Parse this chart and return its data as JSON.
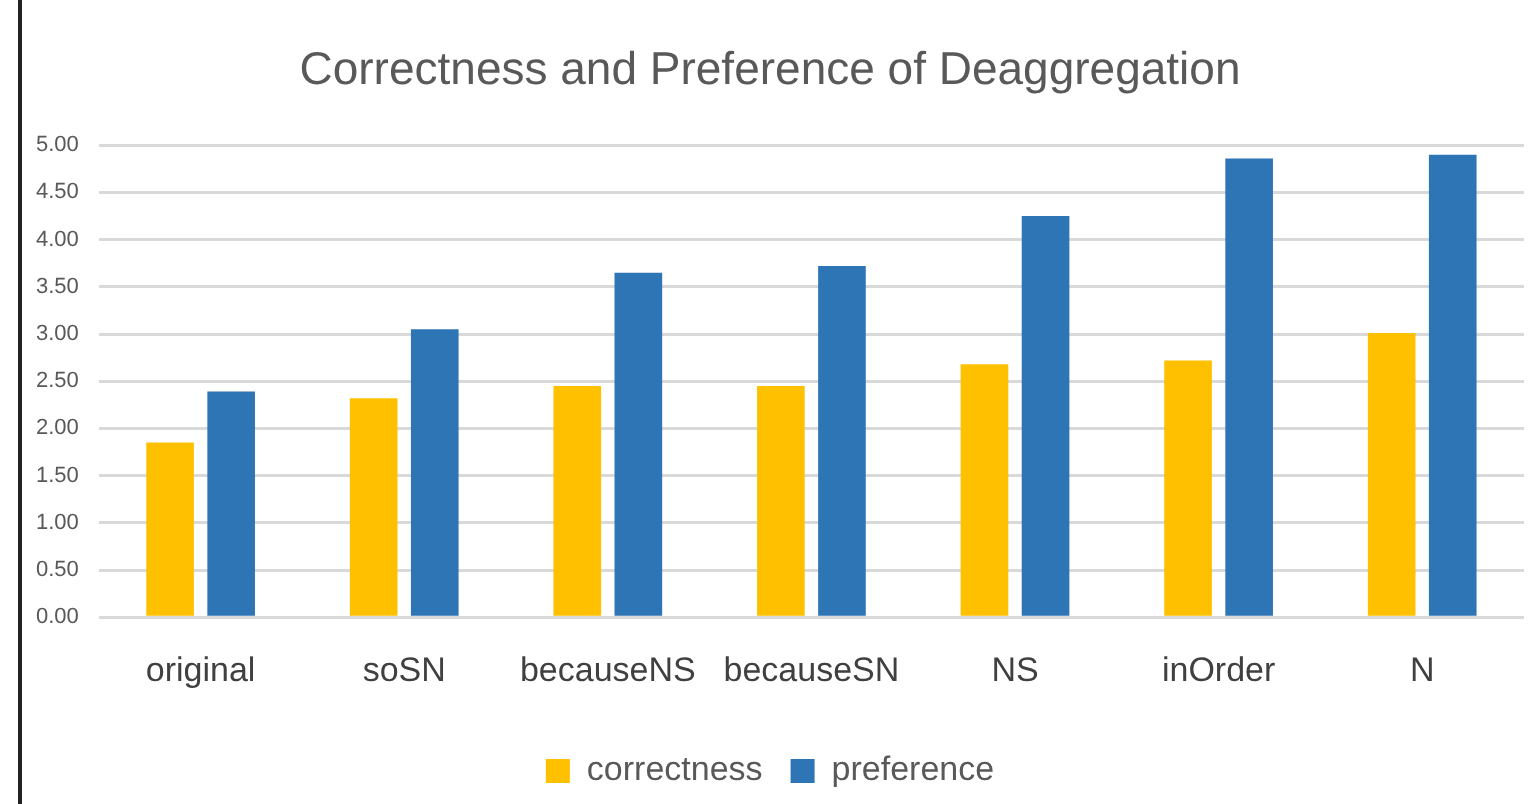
{
  "chart_data": {
    "type": "bar",
    "title": "Correctness and Preference of Deaggregation",
    "categories": [
      "original",
      "soSN",
      "becauseNS",
      "becauseSN",
      "NS",
      "inOrder",
      "N"
    ],
    "series": [
      {
        "name": "correctness",
        "color": "#ffc000",
        "values": [
          1.85,
          2.32,
          2.45,
          2.45,
          2.68,
          2.72,
          3.01
        ]
      },
      {
        "name": "preference",
        "color": "#2e75b6",
        "values": [
          2.39,
          3.05,
          3.65,
          3.72,
          4.25,
          4.86,
          4.9
        ]
      }
    ],
    "ylim": [
      0,
      5
    ],
    "yticks": [
      {
        "value": 0,
        "label": "0.00"
      },
      {
        "value": 0.5,
        "label": "0.50"
      },
      {
        "value": 1,
        "label": "1.00"
      },
      {
        "value": 1.5,
        "label": "1.50"
      },
      {
        "value": 2,
        "label": "2.00"
      },
      {
        "value": 2.5,
        "label": "2.50"
      },
      {
        "value": 3,
        "label": "3.00"
      },
      {
        "value": 3.5,
        "label": "3.50"
      },
      {
        "value": 4,
        "label": "4.00"
      },
      {
        "value": 4.5,
        "label": "4.50"
      },
      {
        "value": 5,
        "label": "5.00"
      }
    ],
    "grid": "y",
    "legend": "bottom"
  }
}
